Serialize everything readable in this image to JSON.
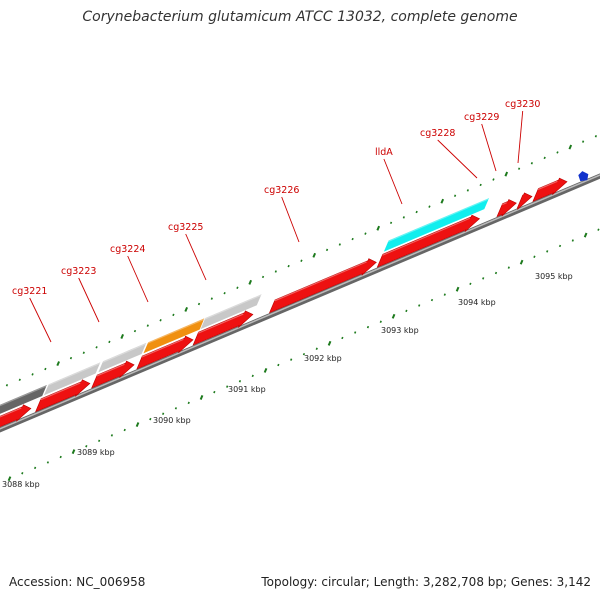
{
  "title": "Corynebacterium glutamicum ATCC 13032, complete genome",
  "footer": {
    "accession": "Accession: NC_006958",
    "info": "Topology: circular; Length: 3,282,708 bp; Genes: 3,142"
  },
  "colors": {
    "cds": "#ee1111",
    "gene_gray": "#c8c8c8",
    "gene_dark_gray": "#666666",
    "gene_orange": "#f09010",
    "gene_cyan": "#11eeee",
    "marker_blue": "#1133cc",
    "tick_green": "#1d7a1d",
    "label_red": "#cc0000",
    "backbone": "#999999"
  },
  "gene_labels": [
    {
      "text": "cg3221"
    },
    {
      "text": "cg3223"
    },
    {
      "text": "cg3224"
    },
    {
      "text": "cg3225"
    },
    {
      "text": "cg3226"
    },
    {
      "text": "lldA"
    },
    {
      "text": "cg3228"
    },
    {
      "text": "cg3229"
    },
    {
      "text": "cg3230"
    }
  ],
  "scale_labels": [
    "3088 kbp",
    "3089 kbp",
    "3090 kbp",
    "3091 kbp",
    "3092 kbp",
    "3093 kbp",
    "3094 kbp",
    "3095 kbp"
  ]
}
